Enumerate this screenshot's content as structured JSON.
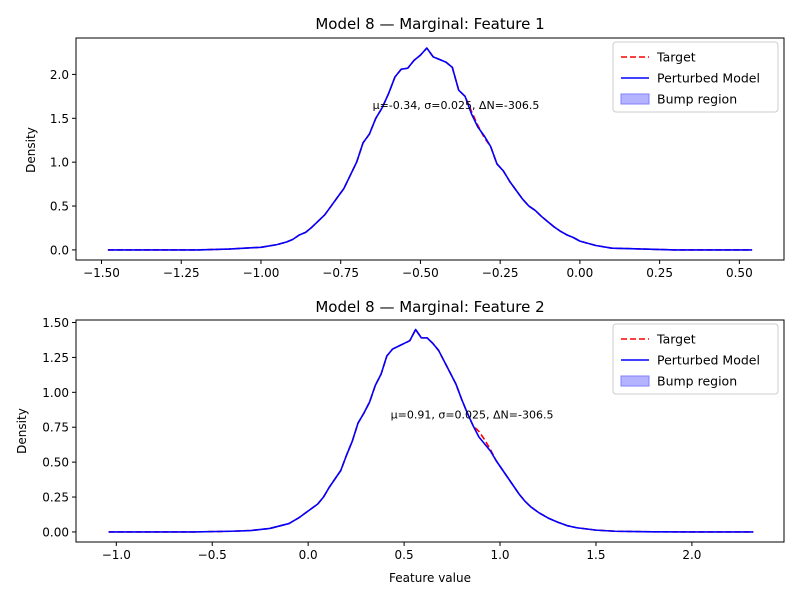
{
  "colors": {
    "target": "#ff0000",
    "model": "#0000ff",
    "bump": "#8080ff",
    "axis": "#000000"
  },
  "chart_data": [
    {
      "type": "line",
      "title": "Model 8 — Marginal: Feature 1",
      "xlabel": "",
      "ylabel": "Density",
      "xlim": [
        -1.58,
        0.64
      ],
      "ylim": [
        -0.115,
        2.415
      ],
      "xticks": [
        -1.5,
        -1.25,
        -1.0,
        -0.75,
        -0.5,
        -0.25,
        0.0,
        0.25,
        0.5
      ],
      "xtick_labels": [
        "−1.50",
        "−1.25",
        "−1.00",
        "−0.75",
        "−0.50",
        "−0.25",
        "0.00",
        "0.25",
        "0.50"
      ],
      "yticks": [
        0.0,
        0.5,
        1.0,
        1.5,
        2.0
      ],
      "ytick_labels": [
        "0.0",
        "0.5",
        "1.0",
        "1.5",
        "2.0"
      ],
      "annotation": {
        "text": "μ=-0.34, σ=0.025, ΔN=-306.5",
        "x": -0.65,
        "y": 1.65
      },
      "legend": {
        "position": "top-right",
        "entries": [
          "Target",
          "Perturbed Model",
          "Bump region"
        ]
      },
      "bump": {
        "mu": -0.34,
        "sigma": 0.025,
        "from": -0.365,
        "to": -0.315
      },
      "series": [
        {
          "name": "Target",
          "style": "dashed",
          "x": [
            -1.48,
            -1.3,
            -1.2,
            -1.1,
            -1.0,
            -0.95,
            -0.92,
            -0.9,
            -0.88,
            -0.86,
            -0.84,
            -0.82,
            -0.8,
            -0.78,
            -0.76,
            -0.74,
            -0.72,
            -0.7,
            -0.68,
            -0.66,
            -0.64,
            -0.62,
            -0.6,
            -0.58,
            -0.56,
            -0.54,
            -0.52,
            -0.5,
            -0.48,
            -0.46,
            -0.44,
            -0.42,
            -0.4,
            -0.38,
            -0.36,
            -0.34,
            -0.32,
            -0.3,
            -0.28,
            -0.26,
            -0.24,
            -0.22,
            -0.2,
            -0.18,
            -0.16,
            -0.14,
            -0.12,
            -0.1,
            -0.08,
            -0.06,
            -0.04,
            -0.02,
            0.0,
            0.05,
            0.1,
            0.2,
            0.3,
            0.4,
            0.54
          ],
          "y": [
            0.0,
            0.0,
            0.0,
            0.01,
            0.03,
            0.06,
            0.09,
            0.12,
            0.17,
            0.2,
            0.26,
            0.33,
            0.4,
            0.5,
            0.6,
            0.7,
            0.85,
            1.0,
            1.22,
            1.32,
            1.5,
            1.62,
            1.78,
            1.97,
            2.06,
            2.07,
            2.16,
            2.22,
            2.3,
            2.2,
            2.17,
            2.14,
            2.08,
            1.82,
            1.75,
            1.58,
            1.42,
            1.28,
            1.18,
            0.98,
            0.9,
            0.78,
            0.68,
            0.58,
            0.5,
            0.45,
            0.38,
            0.32,
            0.26,
            0.21,
            0.17,
            0.14,
            0.1,
            0.05,
            0.02,
            0.01,
            0.0,
            0.0,
            0.0
          ]
        },
        {
          "name": "Perturbed Model",
          "style": "solid",
          "x": [
            -1.48,
            -1.3,
            -1.2,
            -1.1,
            -1.0,
            -0.95,
            -0.92,
            -0.9,
            -0.88,
            -0.86,
            -0.84,
            -0.82,
            -0.8,
            -0.78,
            -0.76,
            -0.74,
            -0.72,
            -0.7,
            -0.68,
            -0.66,
            -0.64,
            -0.62,
            -0.6,
            -0.58,
            -0.56,
            -0.54,
            -0.52,
            -0.5,
            -0.48,
            -0.46,
            -0.44,
            -0.42,
            -0.4,
            -0.38,
            -0.36,
            -0.34,
            -0.32,
            -0.3,
            -0.28,
            -0.26,
            -0.24,
            -0.22,
            -0.2,
            -0.18,
            -0.16,
            -0.14,
            -0.12,
            -0.1,
            -0.08,
            -0.06,
            -0.04,
            -0.02,
            0.0,
            0.05,
            0.1,
            0.2,
            0.3,
            0.4,
            0.54
          ],
          "y": [
            0.0,
            0.0,
            0.0,
            0.01,
            0.03,
            0.06,
            0.09,
            0.12,
            0.17,
            0.2,
            0.26,
            0.33,
            0.4,
            0.5,
            0.6,
            0.7,
            0.85,
            1.0,
            1.22,
            1.32,
            1.5,
            1.62,
            1.78,
            1.97,
            2.06,
            2.07,
            2.16,
            2.22,
            2.3,
            2.2,
            2.17,
            2.14,
            2.08,
            1.82,
            1.75,
            1.55,
            1.4,
            1.3,
            1.18,
            0.98,
            0.9,
            0.78,
            0.68,
            0.58,
            0.5,
            0.45,
            0.38,
            0.32,
            0.26,
            0.21,
            0.17,
            0.14,
            0.1,
            0.05,
            0.02,
            0.01,
            0.0,
            0.0,
            0.0
          ]
        }
      ]
    },
    {
      "type": "line",
      "title": "Model 8 — Marginal: Feature 2",
      "xlabel": "Feature value",
      "ylabel": "Density",
      "xlim": [
        -1.21,
        2.48
      ],
      "ylim": [
        -0.072,
        1.518
      ],
      "xticks": [
        -1.0,
        -0.5,
        0.0,
        0.5,
        1.0,
        1.5,
        2.0
      ],
      "xtick_labels": [
        "−1.0",
        "−0.5",
        "0.0",
        "0.5",
        "1.0",
        "1.5",
        "2.0"
      ],
      "yticks": [
        0.0,
        0.25,
        0.5,
        0.75,
        1.0,
        1.25,
        1.5
      ],
      "ytick_labels": [
        "0.00",
        "0.25",
        "0.50",
        "0.75",
        "1.00",
        "1.25",
        "1.50"
      ],
      "annotation": {
        "text": "μ=0.91, σ=0.025, ΔN=-306.5",
        "x": 0.43,
        "y": 0.84
      },
      "legend": {
        "position": "top-right",
        "entries": [
          "Target",
          "Perturbed Model",
          "Bump region"
        ]
      },
      "bump": {
        "mu": 0.91,
        "sigma": 0.025,
        "from": 0.885,
        "to": 0.935
      },
      "series": [
        {
          "name": "Target",
          "style": "dashed",
          "x": [
            -1.04,
            -0.6,
            -0.4,
            -0.3,
            -0.2,
            -0.1,
            -0.05,
            0.0,
            0.05,
            0.08,
            0.11,
            0.14,
            0.17,
            0.2,
            0.23,
            0.26,
            0.29,
            0.32,
            0.35,
            0.38,
            0.41,
            0.44,
            0.47,
            0.5,
            0.53,
            0.56,
            0.59,
            0.62,
            0.65,
            0.68,
            0.71,
            0.74,
            0.77,
            0.8,
            0.83,
            0.86,
            0.89,
            0.92,
            0.95,
            0.98,
            1.01,
            1.04,
            1.07,
            1.1,
            1.13,
            1.16,
            1.2,
            1.25,
            1.3,
            1.35,
            1.4,
            1.5,
            1.6,
            1.8,
            2.0,
            2.32
          ],
          "y": [
            0.0,
            0.0,
            0.005,
            0.01,
            0.025,
            0.06,
            0.1,
            0.15,
            0.2,
            0.25,
            0.32,
            0.38,
            0.44,
            0.55,
            0.65,
            0.78,
            0.85,
            0.93,
            1.05,
            1.13,
            1.26,
            1.31,
            1.33,
            1.35,
            1.37,
            1.45,
            1.39,
            1.39,
            1.35,
            1.3,
            1.22,
            1.14,
            1.06,
            0.95,
            0.85,
            0.76,
            0.72,
            0.66,
            0.59,
            0.51,
            0.45,
            0.39,
            0.33,
            0.27,
            0.22,
            0.18,
            0.14,
            0.1,
            0.07,
            0.045,
            0.03,
            0.013,
            0.005,
            0.001,
            0.0,
            0.0
          ]
        },
        {
          "name": "Perturbed Model",
          "style": "solid",
          "x": [
            -1.04,
            -0.6,
            -0.4,
            -0.3,
            -0.2,
            -0.1,
            -0.05,
            0.0,
            0.05,
            0.08,
            0.11,
            0.14,
            0.17,
            0.2,
            0.23,
            0.26,
            0.29,
            0.32,
            0.35,
            0.38,
            0.41,
            0.44,
            0.47,
            0.5,
            0.53,
            0.56,
            0.59,
            0.62,
            0.65,
            0.68,
            0.71,
            0.74,
            0.77,
            0.8,
            0.83,
            0.86,
            0.89,
            0.92,
            0.95,
            0.98,
            1.01,
            1.04,
            1.07,
            1.1,
            1.13,
            1.16,
            1.2,
            1.25,
            1.3,
            1.35,
            1.4,
            1.5,
            1.6,
            1.8,
            2.0,
            2.32
          ],
          "y": [
            0.0,
            0.0,
            0.005,
            0.01,
            0.025,
            0.06,
            0.1,
            0.15,
            0.2,
            0.25,
            0.32,
            0.38,
            0.44,
            0.55,
            0.65,
            0.78,
            0.85,
            0.93,
            1.05,
            1.13,
            1.26,
            1.31,
            1.33,
            1.35,
            1.37,
            1.45,
            1.39,
            1.39,
            1.35,
            1.3,
            1.22,
            1.14,
            1.06,
            0.95,
            0.85,
            0.76,
            0.68,
            0.63,
            0.58,
            0.51,
            0.45,
            0.39,
            0.33,
            0.27,
            0.22,
            0.18,
            0.14,
            0.1,
            0.07,
            0.045,
            0.03,
            0.013,
            0.005,
            0.001,
            0.0,
            0.0
          ]
        }
      ]
    }
  ]
}
